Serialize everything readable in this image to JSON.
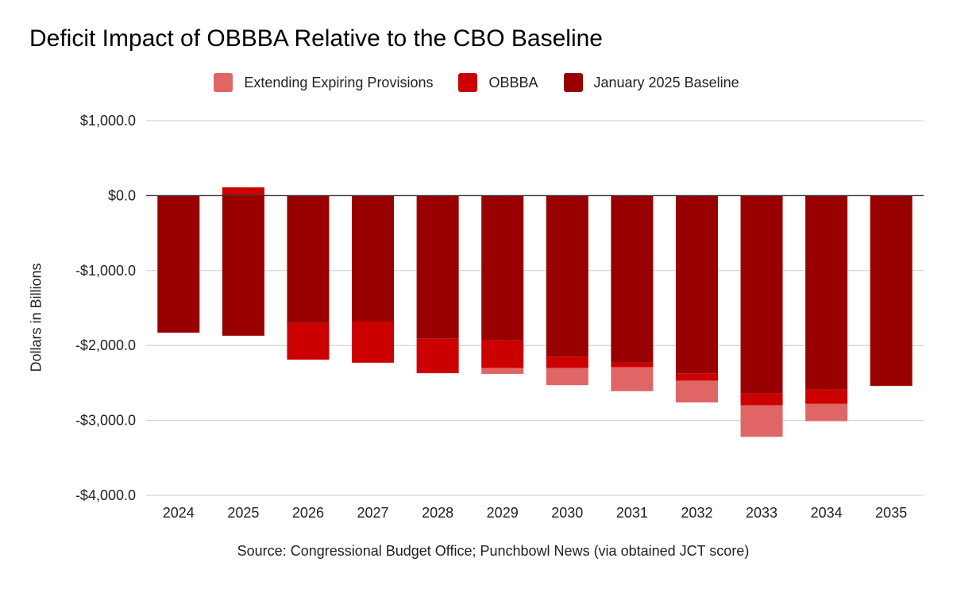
{
  "chart_data": {
    "type": "bar",
    "stacked": true,
    "title": "Deficit Impact of OBBBA Relative to the CBO Baseline",
    "ylabel": "Dollars in Billions",
    "xlabel": "",
    "source": "Source: Congressional Budget Office; Punchbowl News (via obtained JCT score)",
    "legend_position": "top",
    "grid": true,
    "ylim": [
      -4000,
      1000
    ],
    "yticks": [
      1000,
      0,
      -1000,
      -2000,
      -3000,
      -4000
    ],
    "ytick_labels": [
      "$1,000.0",
      "$0.0",
      "-$1,000.0",
      "-$2,000.0",
      "-$3,000.0",
      "-$4,000.0"
    ],
    "categories": [
      "2024",
      "2025",
      "2026",
      "2027",
      "2028",
      "2029",
      "2030",
      "2031",
      "2032",
      "2033",
      "2034",
      "2035"
    ],
    "series": [
      {
        "name": "Extending Expiring Provisions",
        "color": "#e06666",
        "values": [
          0,
          0,
          0,
          0,
          0,
          -80,
          -230,
          -320,
          -290,
          -420,
          -230,
          0
        ]
      },
      {
        "name": "OBBBA",
        "color": "#cc0000",
        "values": [
          0,
          110,
          -490,
          -550,
          -460,
          -370,
          -150,
          -60,
          -100,
          -160,
          -190,
          0
        ]
      },
      {
        "name": "January 2025 Baseline",
        "color": "#990000",
        "values": [
          -1830,
          -1870,
          -1700,
          -1680,
          -1910,
          -1930,
          -2150,
          -2230,
          -2370,
          -2640,
          -2590,
          -2540
        ]
      }
    ]
  }
}
